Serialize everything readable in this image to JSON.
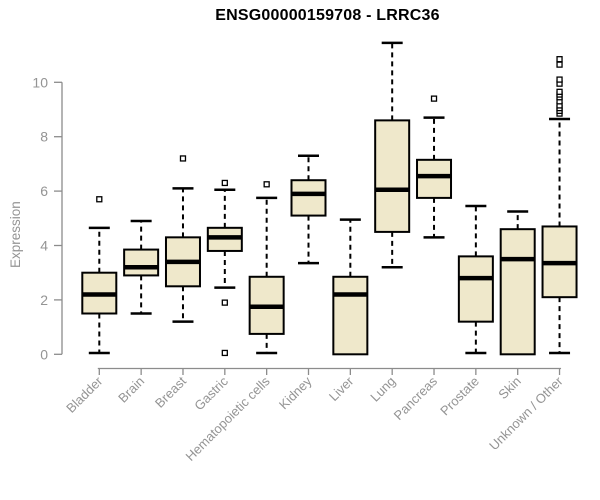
{
  "colors": {
    "box_fill": "#EFE8CB",
    "box_border": "#000000",
    "median": "#000000",
    "whisker": "#000000",
    "outlier_fill": "#ffffff",
    "axis_line": "#8C8C8C",
    "axis_text": "#949494",
    "title_text": "#000000",
    "background": "#ffffff"
  },
  "chart_data": {
    "type": "boxplot",
    "title": "ENSG00000159708 - LRRC36",
    "xlabel": "",
    "ylabel": "Expression",
    "ylim": [
      0,
      10
    ],
    "yticks": [
      0,
      2,
      4,
      6,
      8,
      10
    ],
    "grid": false,
    "legend": false,
    "categories": [
      "Bladder",
      "Brain",
      "Breast",
      "Gastric",
      "Hematopoietic cells",
      "Kidney",
      "Liver",
      "Lung",
      "Pancreas",
      "Prostate",
      "Skin",
      "Unknown / Other"
    ],
    "series": [
      {
        "category": "Bladder",
        "whisker_low": 0.05,
        "q1": 1.5,
        "median": 2.2,
        "q3": 3.0,
        "whisker_high": 4.65,
        "outliers": [
          5.7
        ]
      },
      {
        "category": "Brain",
        "whisker_low": 1.5,
        "q1": 2.9,
        "median": 3.2,
        "q3": 3.85,
        "whisker_high": 4.9,
        "outliers": []
      },
      {
        "category": "Breast",
        "whisker_low": 1.2,
        "q1": 2.5,
        "median": 3.4,
        "q3": 4.3,
        "whisker_high": 6.1,
        "outliers": [
          7.2
        ]
      },
      {
        "category": "Gastric",
        "whisker_low": 2.45,
        "q1": 3.8,
        "median": 4.3,
        "q3": 4.65,
        "whisker_high": 6.05,
        "outliers": [
          6.3,
          1.9,
          0.05
        ]
      },
      {
        "category": "Hematopoietic cells",
        "whisker_low": 0.05,
        "q1": 0.75,
        "median": 1.75,
        "q3": 2.85,
        "whisker_high": 5.75,
        "outliers": [
          6.25
        ]
      },
      {
        "category": "Kidney",
        "whisker_low": 3.35,
        "q1": 5.1,
        "median": 5.9,
        "q3": 6.4,
        "whisker_high": 7.3,
        "outliers": []
      },
      {
        "category": "Liver",
        "whisker_low": 0.0,
        "q1": 0.0,
        "median": 2.2,
        "q3": 2.85,
        "whisker_high": 4.95,
        "outliers": []
      },
      {
        "category": "Lung",
        "whisker_low": 3.2,
        "q1": 4.5,
        "median": 6.05,
        "q3": 8.6,
        "whisker_high": 11.45,
        "outliers": []
      },
      {
        "category": "Pancreas",
        "whisker_low": 4.3,
        "q1": 5.75,
        "median": 6.55,
        "q3": 7.15,
        "whisker_high": 8.7,
        "outliers": [
          9.4
        ]
      },
      {
        "category": "Prostate",
        "whisker_low": 0.05,
        "q1": 1.2,
        "median": 2.8,
        "q3": 3.6,
        "whisker_high": 5.45,
        "outliers": []
      },
      {
        "category": "Skin",
        "whisker_low": 0.0,
        "q1": 0.0,
        "median": 3.5,
        "q3": 4.6,
        "whisker_high": 5.25,
        "outliers": []
      },
      {
        "category": "Unknown / Other",
        "whisker_low": 0.05,
        "q1": 2.1,
        "median": 3.35,
        "q3": 4.7,
        "whisker_high": 8.65,
        "outliers": [
          8.85,
          8.95,
          9.05,
          9.15,
          9.3,
          9.45,
          9.55,
          9.65,
          9.95,
          10.1,
          10.65,
          10.85
        ]
      }
    ]
  }
}
